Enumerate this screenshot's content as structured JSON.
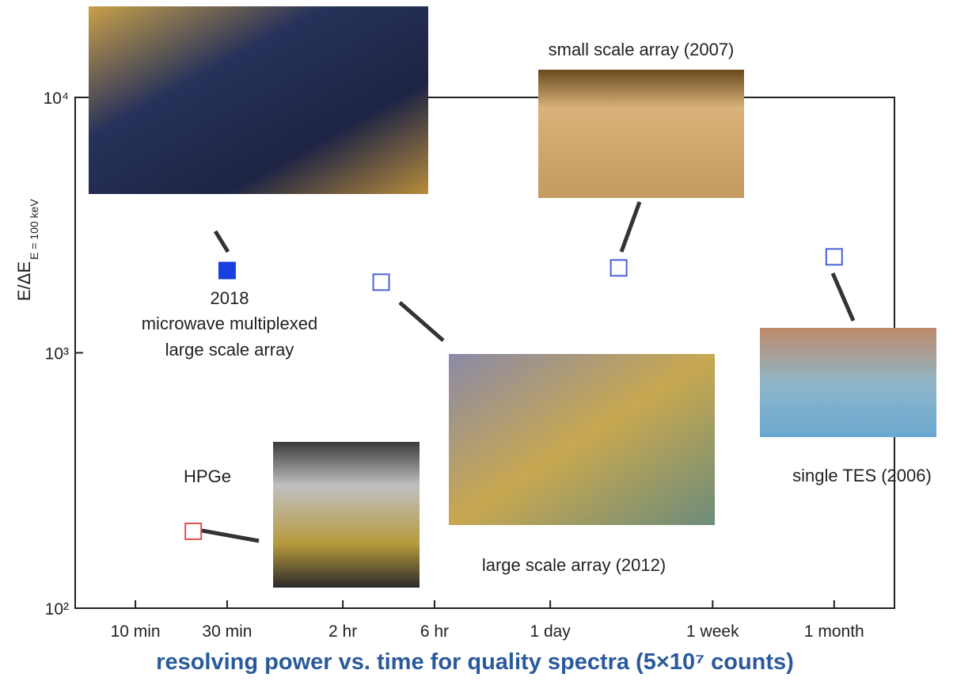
{
  "chart_data": {
    "type": "scatter",
    "title": "resolving power vs. time for quality spectra  (5×10⁷ counts)",
    "ylabel": "E/ΔE",
    "ylabel_sub": "E = 100 keV",
    "x": [
      30,
      20,
      190,
      3270,
      43200
    ],
    "values": [
      2100,
      200,
      1890,
      2150,
      2375
    ],
    "colors": [
      "#1a3fe0",
      "#e05050",
      "#4a62d8",
      "#4a62d8",
      "#4a62d8"
    ],
    "filled": [
      true,
      false,
      false,
      false,
      false
    ],
    "annotations": [
      "2018",
      "microwave multiplexed",
      "large scale array",
      "HPGe",
      "small scale array (2007)",
      "large scale array (2012)",
      "single TES (2006)"
    ],
    "xscale": "log",
    "yscale": "log",
    "xlim": [
      4.86,
      89000
    ],
    "ylim": [
      100,
      10000
    ],
    "xticks": [
      {
        "value": 10,
        "label": "10 min"
      },
      {
        "value": 30,
        "label": "30 min"
      },
      {
        "value": 120,
        "label": "2 hr"
      },
      {
        "value": 360,
        "label": "6 hr"
      },
      {
        "value": 1440,
        "label": "1 day"
      },
      {
        "value": 10080,
        "label": "1 week"
      },
      {
        "value": 43200,
        "label": "1 month"
      }
    ],
    "yticks": [
      {
        "value": 100,
        "label": "10²"
      },
      {
        "value": 1000,
        "label": "10³"
      },
      {
        "value": 10000,
        "label": "10⁴"
      }
    ]
  }
}
